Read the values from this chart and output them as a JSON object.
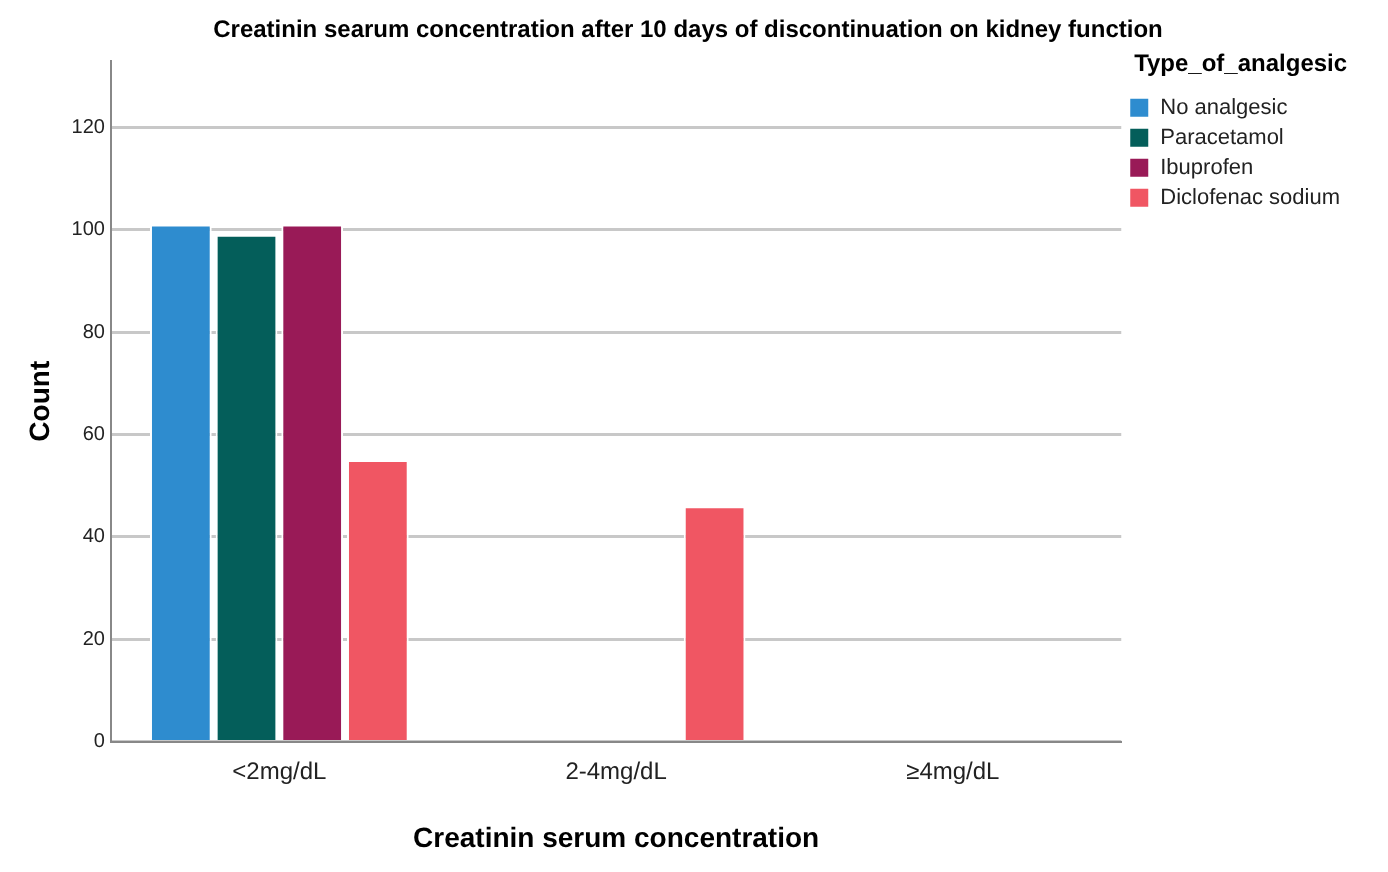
{
  "chart_data": {
    "type": "bar",
    "title": "Creatinin searum concentration after 10 days of discontinuation on kidney function",
    "xlabel": "Creatinin serum concentration",
    "ylabel": "Count",
    "legend_title": "Type_of_analgesic",
    "categories": [
      "<2mg/dL",
      "2-4mg/dL",
      "≥4mg/dL"
    ],
    "series": [
      {
        "name": "No analgesic",
        "color": "#2e8ccf",
        "values": [
          101,
          null,
          null
        ]
      },
      {
        "name": "Paracetamol",
        "color": "#045e5a",
        "values": [
          99,
          null,
          null
        ]
      },
      {
        "name": "Ibuprofen",
        "color": "#991a57",
        "values": [
          101,
          null,
          null
        ]
      },
      {
        "name": "Diclofenac sodium",
        "color": "#f05663",
        "values": [
          55,
          46,
          null
        ]
      }
    ],
    "ylim": [
      0,
      133
    ],
    "yticks": [
      0,
      20,
      40,
      60,
      80,
      100,
      120
    ],
    "grid": "y",
    "legend": "top right"
  }
}
